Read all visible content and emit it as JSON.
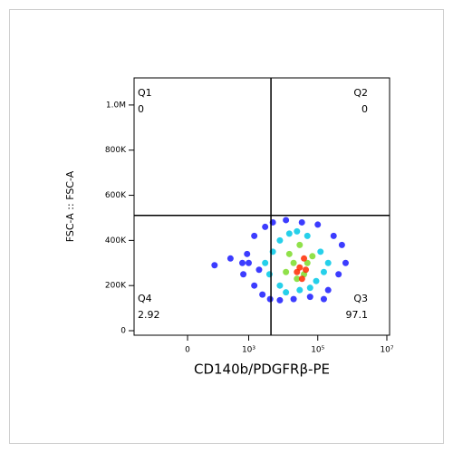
{
  "chart_data": {
    "type": "scatter",
    "xlabel": "CD140b/PDGFRβ-PE",
    "ylabel": "FSC-A :: FSC-A",
    "xscale": "biexponential",
    "xlim": [
      -600,
      12000000
    ],
    "ylim": [
      -20000,
      1120000
    ],
    "xticks": [
      0,
      {
        "value": 1000,
        "label": "10³"
      },
      {
        "value": 100000,
        "label": "10⁵"
      },
      {
        "value": 10000000,
        "label": "10⁷"
      }
    ],
    "yticks": [
      0,
      {
        "value": 200000,
        "label": "200K"
      },
      {
        "value": 400000,
        "label": "400K"
      },
      {
        "value": 600000,
        "label": "600K"
      },
      {
        "value": 800000,
        "label": "800K"
      },
      {
        "value": 1000000,
        "label": "1.0M"
      }
    ],
    "gates": {
      "x": 4420,
      "y": 511000
    },
    "quadrants": [
      {
        "name": "Q1",
        "value": 0
      },
      {
        "name": "Q2",
        "value": 0
      },
      {
        "name": "Q3",
        "value": 97.1
      },
      {
        "name": "Q4",
        "value": 2.92
      }
    ],
    "series": [
      {
        "color": "#1a1aff",
        "x": [
          656,
          700,
          900,
          1452,
          1452,
          2500,
          3000,
          4180,
          5000,
          8000,
          12000,
          20000,
          34700,
          60000,
          100000,
          200000,
          288000,
          400000,
          640000,
          500000,
          100,
          296,
          1000,
          2000,
          150000
        ],
        "y": [
          300000,
          250000,
          340000,
          200000,
          420000,
          160000,
          460000,
          140000,
          480000,
          135000,
          490000,
          140000,
          480000,
          150000,
          470000,
          180000,
          420000,
          250000,
          300000,
          380000,
          290000,
          320000,
          300000,
          270000,
          140000
        ]
      },
      {
        "color": "#00c8e6",
        "x": [
          4000,
          5000,
          8000,
          8000,
          12000,
          15000,
          30000,
          50000,
          90000,
          120000,
          200000,
          3000,
          60000,
          25000,
          150000
        ],
        "y": [
          250000,
          350000,
          200000,
          400000,
          170000,
          430000,
          180000,
          420000,
          220000,
          350000,
          300000,
          300000,
          190000,
          440000,
          260000
        ]
      },
      {
        "color": "#7ddc2a",
        "x": [
          12000,
          15000,
          25000,
          30000,
          50000,
          70000,
          40000,
          20000
        ],
        "y": [
          260000,
          340000,
          230000,
          380000,
          300000,
          330000,
          250000,
          300000
        ]
      },
      {
        "color": "#ff2a00",
        "x": [
          30000,
          40000,
          25000,
          45000,
          35000
        ],
        "y": [
          280000,
          320000,
          260000,
          270000,
          230000
        ]
      }
    ]
  }
}
